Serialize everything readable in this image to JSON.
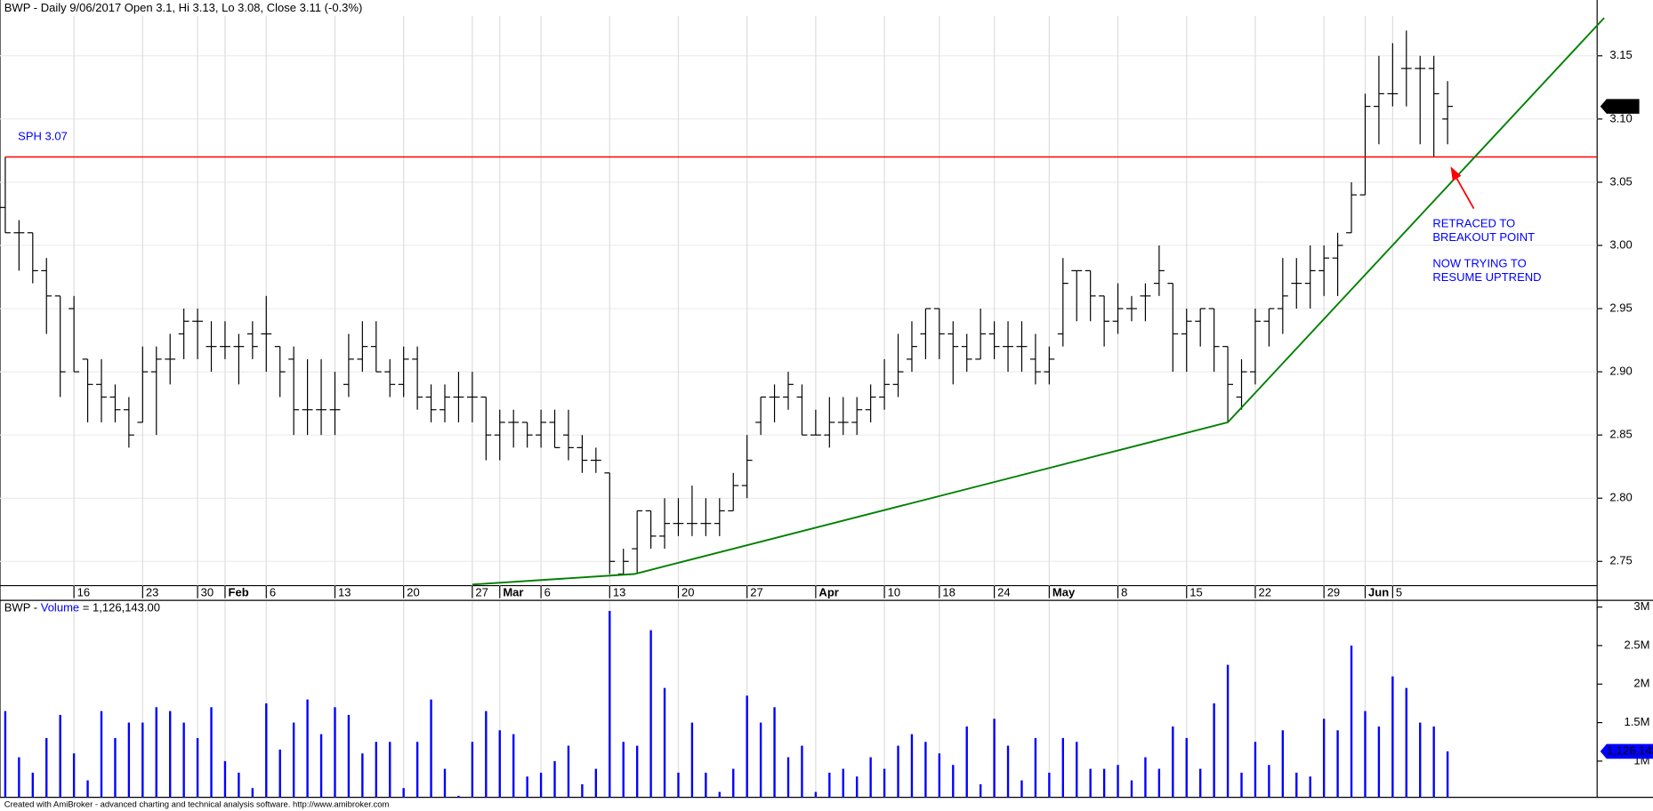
{
  "chart_data": [
    {
      "type": "ohlc",
      "title": "BWP - Daily 9/06/2017 Open 3.1, Hi 3.13, Lo 3.08, Close 3.11 (-0.3%)",
      "categories": [
        null,
        null,
        null,
        null,
        null,
        "16",
        null,
        null,
        null,
        null,
        "23",
        null,
        null,
        null,
        "30",
        null,
        "Feb",
        null,
        null,
        "6",
        null,
        null,
        null,
        null,
        "13",
        null,
        null,
        null,
        null,
        "20",
        null,
        null,
        null,
        null,
        "27",
        null,
        "Mar",
        null,
        null,
        "6",
        null,
        null,
        null,
        null,
        "13",
        null,
        null,
        null,
        null,
        "20",
        null,
        null,
        null,
        null,
        "27",
        null,
        null,
        null,
        null,
        "Apr",
        null,
        null,
        null,
        null,
        "10",
        null,
        null,
        null,
        "18",
        null,
        null,
        null,
        "24",
        null,
        null,
        null,
        "May",
        null,
        null,
        null,
        null,
        "8",
        null,
        null,
        null,
        null,
        "15",
        null,
        null,
        null,
        null,
        "22",
        null,
        null,
        null,
        null,
        "29",
        null,
        null,
        "Jun",
        null,
        "5",
        null,
        null,
        null,
        null
      ],
      "open": [
        3.03,
        3.01,
        3.01,
        2.98,
        2.96,
        2.95,
        2.91,
        2.89,
        2.88,
        2.87,
        2.86,
        2.9,
        2.91,
        2.93,
        2.94,
        2.92,
        2.92,
        2.92,
        2.93,
        2.93,
        2.92,
        2.91,
        2.87,
        2.87,
        2.87,
        2.89,
        2.91,
        2.92,
        2.9,
        2.89,
        2.91,
        2.88,
        2.87,
        2.88,
        2.88,
        2.88,
        2.85,
        2.86,
        2.86,
        2.85,
        2.86,
        2.85,
        2.84,
        2.83,
        2.82,
        2.74,
        2.76,
        2.79,
        2.77,
        2.78,
        2.78,
        2.78,
        2.78,
        2.79,
        2.81,
        2.86,
        2.88,
        2.88,
        2.88,
        2.85,
        2.85,
        2.86,
        2.86,
        2.87,
        2.88,
        2.89,
        2.91,
        2.93,
        2.95,
        2.93,
        2.92,
        2.91,
        2.93,
        2.92,
        2.92,
        2.91,
        2.9,
        2.93,
        2.98,
        2.98,
        2.96,
        2.94,
        2.95,
        2.96,
        2.97,
        2.97,
        2.93,
        2.94,
        2.95,
        2.92,
        2.88,
        2.9,
        2.94,
        2.95,
        2.97,
        2.97,
        2.98,
        2.99,
        3.01,
        3.04,
        3.11,
        3.12,
        3.14,
        3.14,
        3.14,
        3.1
      ],
      "high": [
        3.07,
        3.02,
        3.01,
        2.99,
        2.96,
        2.96,
        2.91,
        2.91,
        2.89,
        2.88,
        2.92,
        2.92,
        2.93,
        2.95,
        2.95,
        2.94,
        2.94,
        2.93,
        2.94,
        2.96,
        2.92,
        2.92,
        2.91,
        2.91,
        2.9,
        2.93,
        2.94,
        2.94,
        2.91,
        2.92,
        2.92,
        2.89,
        2.89,
        2.9,
        2.9,
        2.88,
        2.87,
        2.87,
        2.86,
        2.87,
        2.87,
        2.87,
        2.85,
        2.84,
        2.82,
        2.76,
        2.79,
        2.79,
        2.8,
        2.8,
        2.81,
        2.8,
        2.8,
        2.82,
        2.85,
        2.88,
        2.89,
        2.9,
        2.89,
        2.87,
        2.88,
        2.88,
        2.88,
        2.89,
        2.91,
        2.93,
        2.94,
        2.95,
        2.95,
        2.94,
        2.93,
        2.95,
        2.94,
        2.94,
        2.94,
        2.93,
        2.92,
        2.99,
        2.98,
        2.98,
        2.96,
        2.97,
        2.96,
        2.97,
        3.0,
        2.97,
        2.95,
        2.95,
        2.95,
        2.92,
        2.91,
        2.95,
        2.95,
        2.99,
        2.99,
        3.0,
        3.0,
        3.01,
        3.05,
        3.12,
        3.15,
        3.16,
        3.17,
        3.15,
        3.15,
        3.13
      ],
      "low": [
        3.01,
        2.98,
        2.97,
        2.93,
        2.88,
        2.9,
        2.86,
        2.86,
        2.86,
        2.84,
        2.86,
        2.85,
        2.89,
        2.91,
        2.91,
        2.9,
        2.91,
        2.89,
        2.91,
        2.9,
        2.88,
        2.85,
        2.85,
        2.85,
        2.85,
        2.88,
        2.9,
        2.9,
        2.88,
        2.88,
        2.87,
        2.86,
        2.86,
        2.86,
        2.86,
        2.83,
        2.83,
        2.84,
        2.84,
        2.84,
        2.84,
        2.83,
        2.82,
        2.82,
        2.74,
        2.74,
        2.74,
        2.76,
        2.76,
        2.77,
        2.77,
        2.77,
        2.77,
        2.79,
        2.8,
        2.85,
        2.86,
        2.87,
        2.85,
        2.85,
        2.84,
        2.85,
        2.85,
        2.86,
        2.87,
        2.88,
        2.9,
        2.91,
        2.91,
        2.89,
        2.9,
        2.91,
        2.91,
        2.9,
        2.9,
        2.89,
        2.89,
        2.92,
        2.94,
        2.94,
        2.92,
        2.93,
        2.94,
        2.94,
        2.96,
        2.9,
        2.9,
        2.92,
        2.9,
        2.86,
        2.87,
        2.89,
        2.92,
        2.93,
        2.95,
        2.95,
        2.96,
        2.96,
        3.01,
        3.04,
        3.08,
        3.11,
        3.11,
        3.08,
        3.07,
        3.08
      ],
      "close": [
        3.01,
        3.01,
        2.98,
        2.96,
        2.9,
        2.9,
        2.89,
        2.88,
        2.87,
        2.85,
        2.9,
        2.91,
        2.91,
        2.94,
        2.94,
        2.92,
        2.92,
        2.92,
        2.92,
        2.93,
        2.9,
        2.87,
        2.87,
        2.87,
        2.87,
        2.91,
        2.92,
        2.9,
        2.89,
        2.91,
        2.88,
        2.87,
        2.88,
        2.88,
        2.88,
        2.85,
        2.86,
        2.86,
        2.85,
        2.86,
        2.84,
        2.84,
        2.83,
        2.83,
        2.75,
        2.75,
        2.79,
        2.77,
        2.78,
        2.78,
        2.78,
        2.78,
        2.79,
        2.81,
        2.83,
        2.88,
        2.88,
        2.89,
        2.85,
        2.85,
        2.86,
        2.86,
        2.87,
        2.88,
        2.89,
        2.9,
        2.92,
        2.95,
        2.93,
        2.92,
        2.91,
        2.93,
        2.92,
        2.92,
        2.92,
        2.9,
        2.91,
        2.97,
        2.98,
        2.96,
        2.94,
        2.95,
        2.95,
        2.96,
        2.98,
        2.93,
        2.94,
        2.95,
        2.92,
        2.89,
        2.9,
        2.94,
        2.95,
        2.96,
        2.97,
        2.98,
        2.99,
        3.0,
        3.04,
        3.11,
        3.12,
        3.12,
        3.14,
        3.14,
        3.12,
        3.11
      ],
      "color": "#000000",
      "ylim": [
        2.73,
        3.18
      ],
      "yticks": [
        2.75,
        {
          "value": 2.8,
          "label": "2.80"
        },
        2.85,
        {
          "value": 2.9,
          "label": "2.90"
        },
        2.95,
        {
          "value": 3,
          "label": "3.00"
        },
        3.05,
        {
          "value": 3.1,
          "label": "3.10"
        },
        3.15
      ],
      "grid": true,
      "hline": 3.07,
      "hline_color": "#ff0000",
      "trendline": {
        "x": [
          34,
          45.8,
          89,
          116.4
        ],
        "y": [
          2.7317,
          2.74,
          2.86,
          3.18
        ],
        "color": "#008000"
      },
      "annotations": [
        "SPH 3.07",
        "RETRACED TO",
        "BREAKOUT POINT",
        "NOW TRYING TO",
        "RESUME UPTREND"
      ]
    },
    {
      "type": "bar",
      "title_prefix": "BWP - ",
      "title": "Volume",
      "title_suffix": " = 1,126,143.00",
      "values": [
        1650000,
        1050000,
        850000,
        1300000,
        1600000,
        1100000,
        750000,
        1650000,
        1300000,
        1500000,
        1500000,
        1700000,
        1650000,
        1500000,
        1300000,
        1700000,
        1000000,
        850000,
        650000,
        1750000,
        1150000,
        1500000,
        1800000,
        1350000,
        1700000,
        1600000,
        1100000,
        1250000,
        1250000,
        650000,
        1250000,
        1800000,
        900000,
        550000,
        1250000,
        1650000,
        1400000,
        1350000,
        800000,
        850000,
        1000000,
        1200000,
        700000,
        900000,
        2950000,
        1250000,
        1200000,
        2700000,
        1950000,
        850000,
        1500000,
        850000,
        600000,
        900000,
        1850000,
        1500000,
        1700000,
        1050000,
        1200000,
        600000,
        850000,
        900000,
        800000,
        1050000,
        900000,
        1200000,
        1350000,
        1250000,
        1100000,
        950000,
        1450000,
        700000,
        1550000,
        1200000,
        750000,
        1300000,
        850000,
        1300000,
        1250000,
        900000,
        900000,
        950000,
        750000,
        1050000,
        900000,
        1450000,
        1300000,
        900000,
        1750000,
        2250000,
        850000,
        1250000,
        950000,
        1400000,
        850000,
        800000,
        1550000,
        1400000,
        2500000,
        1650000,
        1450000,
        2100000,
        1950000,
        1500000,
        1450000,
        1126143
      ],
      "last_label": "1,126,143",
      "color": "#0000ff",
      "ylim": [
        530000,
        3060000
      ],
      "yticks": [
        {
          "value": 1000000,
          "label": "1M"
        },
        {
          "value": 1500000,
          "label": "1.5M"
        },
        {
          "value": 2000000,
          "label": "2M"
        },
        {
          "value": 2500000,
          "label": "2.5M"
        },
        {
          "value": 3000000,
          "label": "3M"
        }
      ]
    }
  ],
  "footer": "Created with AmiBroker - advanced charting and technical analysis software. http://www.amibroker.com"
}
